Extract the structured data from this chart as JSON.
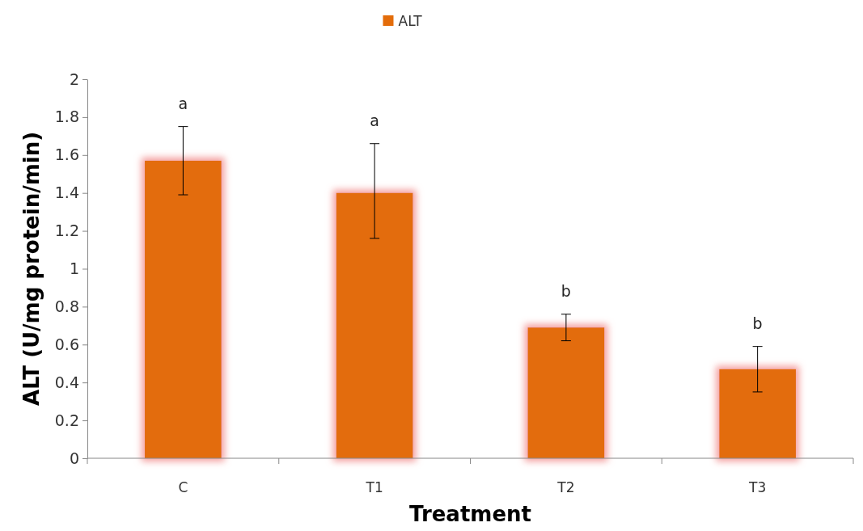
{
  "chart_data": {
    "type": "bar",
    "xlabel": "Treatment",
    "ylabel": "ALT (U/mg protein/min)",
    "categories": [
      "C",
      "T1",
      "T2",
      "T3"
    ],
    "series": [
      {
        "name": "ALT",
        "color": "#e36c0a",
        "values": [
          1.57,
          1.4,
          0.69,
          0.47
        ],
        "errors": [
          [
            1.39,
            1.75
          ],
          [
            1.16,
            1.66
          ],
          [
            0.62,
            0.76
          ],
          [
            0.35,
            0.59
          ]
        ]
      }
    ],
    "ylim": [
      0,
      2
    ],
    "yticks": [
      0,
      {
        "value": 0.2,
        "label": "0.2"
      },
      {
        "value": 0.4,
        "label": "0.4"
      },
      {
        "value": 0.6,
        "label": "0.6"
      },
      {
        "value": 0.8,
        "label": "0.8"
      },
      1,
      {
        "value": 1.2,
        "label": "1.2"
      },
      {
        "value": 1.4,
        "label": "1.4"
      },
      {
        "value": 1.6,
        "label": "1.6"
      },
      {
        "value": 1.8,
        "label": "1.8"
      },
      2
    ],
    "annotations": [
      "a",
      "a",
      "b",
      "b"
    ],
    "grid": false,
    "legend": "top"
  }
}
